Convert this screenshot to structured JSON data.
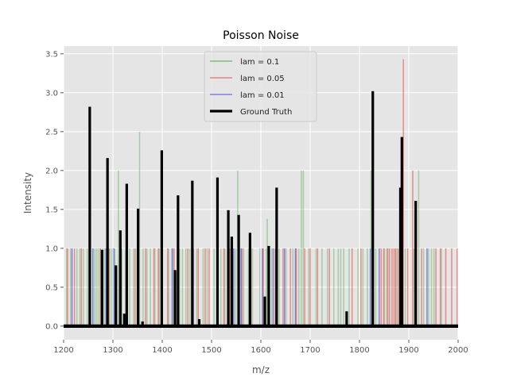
{
  "chart_data": {
    "type": "bar",
    "title": "Poisson Noise",
    "xlabel": "m/z",
    "ylabel": "Intensity",
    "xlim": [
      1200,
      2000
    ],
    "ylim": [
      -0.175,
      3.6
    ],
    "xticks": [
      "1200",
      "1300",
      "1400",
      "1500",
      "1600",
      "1700",
      "1800",
      "1900",
      "2000"
    ],
    "yticks": [
      "0.0",
      "0.5",
      "1.0",
      "1.5",
      "2.0",
      "2.5",
      "3.0",
      "3.5"
    ],
    "grid": true,
    "legend_position": "top-center",
    "series": [
      {
        "name": "lam = 0.1",
        "color": "#5aa85a",
        "points": [
          [
            1206,
            1
          ],
          [
            1214,
            1
          ],
          [
            1227,
            1
          ],
          [
            1233,
            1
          ],
          [
            1240,
            1
          ],
          [
            1248,
            1
          ],
          [
            1262,
            1
          ],
          [
            1266,
            1
          ],
          [
            1270,
            1
          ],
          [
            1274,
            1
          ],
          [
            1279,
            1
          ],
          [
            1283,
            1
          ],
          [
            1294,
            1
          ],
          [
            1298,
            1
          ],
          [
            1304,
            1
          ],
          [
            1311,
            2
          ],
          [
            1318,
            1
          ],
          [
            1326,
            1
          ],
          [
            1334,
            1
          ],
          [
            1342,
            1
          ],
          [
            1349,
            1
          ],
          [
            1354,
            2.5
          ],
          [
            1361,
            1
          ],
          [
            1369,
            1
          ],
          [
            1376,
            1
          ],
          [
            1385,
            1
          ],
          [
            1394,
            1
          ],
          [
            1413,
            1
          ],
          [
            1422,
            1
          ],
          [
            1435,
            1
          ],
          [
            1441,
            1
          ],
          [
            1448,
            1
          ],
          [
            1456,
            1
          ],
          [
            1470,
            1
          ],
          [
            1483,
            1
          ],
          [
            1491,
            1
          ],
          [
            1505,
            1
          ],
          [
            1519,
            1
          ],
          [
            1527,
            1
          ],
          [
            1543,
            1
          ],
          [
            1549,
            1
          ],
          [
            1553,
            2
          ],
          [
            1565,
            1
          ],
          [
            1575,
            1
          ],
          [
            1583,
            1
          ],
          [
            1598,
            1
          ],
          [
            1611,
            1
          ],
          [
            1613,
            1.38
          ],
          [
            1622,
            1
          ],
          [
            1637,
            1
          ],
          [
            1651,
            1
          ],
          [
            1665,
            1
          ],
          [
            1677,
            1
          ],
          [
            1682,
            2
          ],
          [
            1686,
            2
          ],
          [
            1697,
            1
          ],
          [
            1712,
            1
          ],
          [
            1724,
            1
          ],
          [
            1735,
            1
          ],
          [
            1748,
            1
          ],
          [
            1757,
            1
          ],
          [
            1762,
            1
          ],
          [
            1768,
            1
          ],
          [
            1779,
            1
          ],
          [
            1797,
            1
          ],
          [
            1807,
            1
          ],
          [
            1816,
            1
          ],
          [
            1823,
            2
          ],
          [
            1833,
            1
          ],
          [
            1851,
            1
          ],
          [
            1858,
            1
          ],
          [
            1873,
            1
          ],
          [
            1881,
            1
          ],
          [
            1893,
            1
          ],
          [
            1910,
            1
          ],
          [
            1920,
            2
          ],
          [
            1930,
            1
          ],
          [
            1940,
            1
          ],
          [
            1946,
            1
          ],
          [
            1951,
            1
          ],
          [
            1966,
            1
          ]
        ]
      },
      {
        "name": "lam = 0.05",
        "color": "#e55a55",
        "points": [
          [
            1208,
            1
          ],
          [
            1222,
            1
          ],
          [
            1236,
            1
          ],
          [
            1275,
            1
          ],
          [
            1292,
            1
          ],
          [
            1345,
            1
          ],
          [
            1366,
            1
          ],
          [
            1383,
            1
          ],
          [
            1392,
            1
          ],
          [
            1411,
            1
          ],
          [
            1424,
            1
          ],
          [
            1452,
            1
          ],
          [
            1473,
            1
          ],
          [
            1487,
            1
          ],
          [
            1495,
            1
          ],
          [
            1525,
            1
          ],
          [
            1537,
            1
          ],
          [
            1562,
            1
          ],
          [
            1580,
            1
          ],
          [
            1605,
            1
          ],
          [
            1629,
            1
          ],
          [
            1645,
            1
          ],
          [
            1660,
            1
          ],
          [
            1672,
            1
          ],
          [
            1689,
            1
          ],
          [
            1700,
            1
          ],
          [
            1715,
            1
          ],
          [
            1739,
            1
          ],
          [
            1785,
            1
          ],
          [
            1803,
            1
          ],
          [
            1844,
            1
          ],
          [
            1849,
            1
          ],
          [
            1856,
            1
          ],
          [
            1861,
            1
          ],
          [
            1866,
            1
          ],
          [
            1870,
            1
          ],
          [
            1874,
            1
          ],
          [
            1878,
            1
          ],
          [
            1889,
            3.43
          ],
          [
            1898,
            1
          ],
          [
            1908,
            2
          ],
          [
            1926,
            1
          ],
          [
            1955,
            1
          ],
          [
            1964,
            1
          ],
          [
            1975,
            1
          ],
          [
            1987,
            1
          ],
          [
            1998,
            1
          ]
        ]
      },
      {
        "name": "lam = 0.01",
        "color": "#5555dd",
        "points": [
          [
            1217,
            1
          ],
          [
            1259,
            1
          ],
          [
            1286,
            1
          ],
          [
            1302,
            1
          ],
          [
            1420,
            1
          ],
          [
            1463,
            1
          ],
          [
            1545,
            1
          ],
          [
            1560,
            1
          ],
          [
            1603,
            1
          ],
          [
            1625,
            1
          ],
          [
            1648,
            1
          ],
          [
            1670,
            1
          ],
          [
            1822,
            1
          ],
          [
            1840,
            1
          ],
          [
            1884,
            1
          ],
          [
            1937,
            1
          ]
        ]
      },
      {
        "name": "Ground Truth",
        "color": "#000000",
        "points": [
          [
            1253,
            2.82
          ],
          [
            1278,
            0.98
          ],
          [
            1289,
            2.16
          ],
          [
            1306,
            0.78
          ],
          [
            1315,
            1.23
          ],
          [
            1323,
            0.16
          ],
          [
            1328,
            1.83
          ],
          [
            1351,
            1.51
          ],
          [
            1360,
            0.06
          ],
          [
            1399,
            2.26
          ],
          [
            1426,
            0.72
          ],
          [
            1432,
            1.68
          ],
          [
            1461,
            1.87
          ],
          [
            1475,
            0.09
          ],
          [
            1512,
            1.91
          ],
          [
            1534,
            1.49
          ],
          [
            1541,
            1.15
          ],
          [
            1555,
            1.43
          ],
          [
            1578,
            1.2
          ],
          [
            1608,
            0.38
          ],
          [
            1616,
            1.03
          ],
          [
            1632,
            1.78
          ],
          [
            1774,
            0.19
          ],
          [
            1827,
            3.02
          ],
          [
            1883,
            1.78
          ],
          [
            1886,
            2.43
          ],
          [
            1914,
            1.61
          ]
        ]
      }
    ]
  }
}
